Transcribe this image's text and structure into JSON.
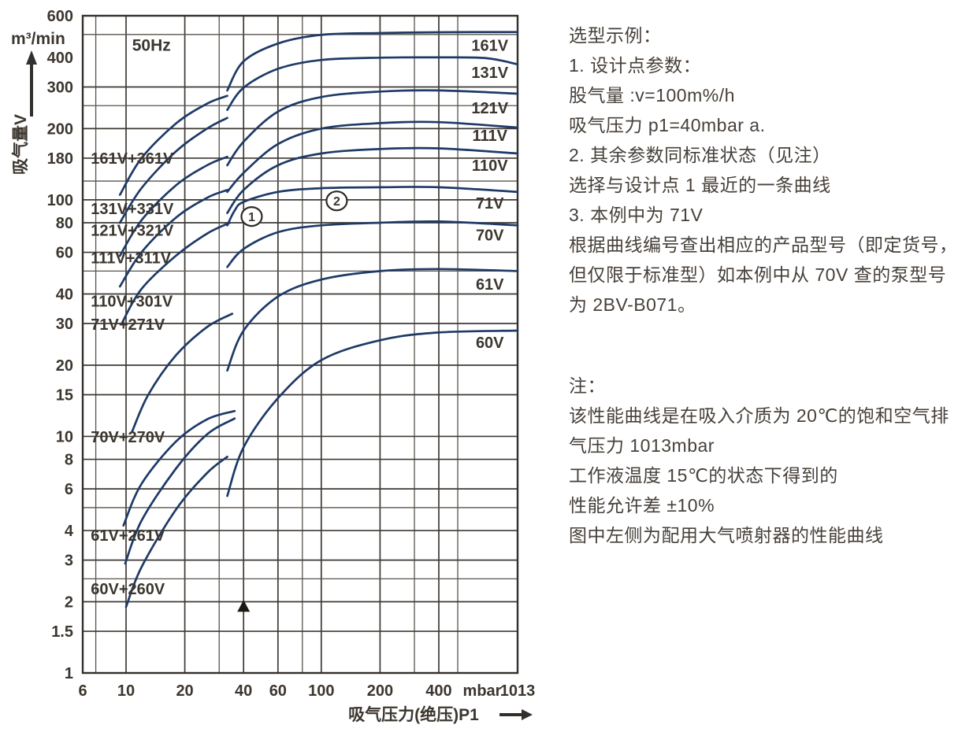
{
  "chart_data": {
    "type": "line",
    "title": "50Hz",
    "x_axis": {
      "label": "吸气压力(绝压)P1",
      "unit_label": "mbar",
      "end_tick_label": "1013",
      "scale": "log",
      "range": [
        6,
        1013
      ],
      "ticks": [
        6,
        10,
        20,
        40,
        60,
        100,
        200,
        400
      ],
      "grid_lines": [
        7,
        10,
        20,
        30,
        40,
        60,
        80,
        100,
        200,
        300,
        400,
        500
      ]
    },
    "y_axis": {
      "label": "吸气量V",
      "unit": "m³/min",
      "scale": "log",
      "range": [
        1,
        600
      ],
      "ticks": [
        {
          "label": "600",
          "pos": 600
        },
        {
          "label": "400",
          "pos": 400
        },
        {
          "label": "300",
          "pos": 300
        },
        {
          "label": "200",
          "pos": 200
        },
        {
          "label": "180",
          "pos": 150
        },
        {
          "label": "100",
          "pos": 100
        },
        {
          "label": "80",
          "pos": 80
        },
        {
          "label": "60",
          "pos": 60
        },
        {
          "label": "40",
          "pos": 40
        },
        {
          "label": "30",
          "pos": 30
        },
        {
          "label": "20",
          "pos": 20
        },
        {
          "label": "15",
          "pos": 15
        },
        {
          "label": "10",
          "pos": 10
        },
        {
          "label": "8",
          "pos": 8
        },
        {
          "label": "6",
          "pos": 6
        },
        {
          "label": "4",
          "pos": 4
        },
        {
          "label": "3",
          "pos": 3
        },
        {
          "label": "2",
          "pos": 2
        },
        {
          "label": "1.5",
          "pos": 1.5
        },
        {
          "label": "1",
          "pos": 1
        }
      ],
      "grid_lines": [
        600,
        500,
        300,
        250,
        200,
        150,
        120,
        100,
        80,
        60,
        50,
        40,
        30,
        20,
        15,
        10,
        8,
        6,
        5,
        4,
        3,
        2.5,
        2,
        1.5,
        1
      ]
    },
    "series": [
      {
        "name": "161V",
        "group": "standard",
        "label": {
          "p": 730,
          "v": 450
        },
        "points": [
          [
            33,
            290
          ],
          [
            40,
            385
          ],
          [
            60,
            458
          ],
          [
            100,
            498
          ],
          [
            200,
            507
          ],
          [
            400,
            511
          ],
          [
            1013,
            512
          ]
        ]
      },
      {
        "name": "131V",
        "group": "standard",
        "label": {
          "p": 730,
          "v": 345
        },
        "points": [
          [
            33,
            240
          ],
          [
            40,
            298
          ],
          [
            60,
            358
          ],
          [
            100,
            390
          ],
          [
            200,
            399
          ],
          [
            400,
            400
          ],
          [
            700,
            397
          ],
          [
            1013,
            374
          ]
        ]
      },
      {
        "name": "121V",
        "group": "standard",
        "label": {
          "p": 730,
          "v": 245
        },
        "points": [
          [
            33,
            140
          ],
          [
            40,
            176
          ],
          [
            60,
            236
          ],
          [
            100,
            272
          ],
          [
            200,
            287
          ],
          [
            400,
            290
          ],
          [
            1013,
            281
          ]
        ]
      },
      {
        "name": "111V",
        "group": "standard",
        "label": {
          "p": 730,
          "v": 187
        },
        "points": [
          [
            33,
            108
          ],
          [
            40,
            130
          ],
          [
            60,
            172
          ],
          [
            100,
            200
          ],
          [
            200,
            211
          ],
          [
            400,
            213
          ],
          [
            1013,
            202
          ]
        ]
      },
      {
        "name": "110V",
        "group": "standard",
        "label": {
          "p": 730,
          "v": 140
        },
        "points": [
          [
            33,
            88
          ],
          [
            40,
            110
          ],
          [
            60,
            140
          ],
          [
            100,
            157
          ],
          [
            200,
            164
          ],
          [
            400,
            165
          ],
          [
            1013,
            157
          ]
        ]
      },
      {
        "name": "71V",
        "group": "standard",
        "label": {
          "p": 730,
          "v": 97
        },
        "points": [
          [
            33,
            78
          ],
          [
            36,
            90
          ],
          [
            40,
            98
          ],
          [
            60,
            108
          ],
          [
            100,
            112
          ],
          [
            200,
            113
          ],
          [
            400,
            113
          ],
          [
            1013,
            108
          ]
        ]
      },
      {
        "name": "70V",
        "group": "standard",
        "label": {
          "p": 730,
          "v": 71
        },
        "points": [
          [
            33,
            52
          ],
          [
            40,
            62
          ],
          [
            60,
            73
          ],
          [
            100,
            78
          ],
          [
            200,
            80
          ],
          [
            400,
            81
          ],
          [
            1013,
            78
          ]
        ]
      },
      {
        "name": "61V",
        "group": "standard",
        "label": {
          "p": 730,
          "v": 44
        },
        "points": [
          [
            33,
            19
          ],
          [
            40,
            28
          ],
          [
            60,
            39
          ],
          [
            100,
            46
          ],
          [
            200,
            50
          ],
          [
            400,
            51
          ],
          [
            1013,
            50
          ]
        ]
      },
      {
        "name": "60V",
        "group": "standard",
        "label": {
          "p": 730,
          "v": 25
        },
        "points": [
          [
            33,
            5.6
          ],
          [
            40,
            9
          ],
          [
            60,
            14.5
          ],
          [
            100,
            21
          ],
          [
            200,
            25.5
          ],
          [
            400,
            27.5
          ],
          [
            1013,
            28
          ]
        ]
      },
      {
        "name": "161V+361V",
        "group": "ejector",
        "label": {
          "p": 6.6,
          "v": 150
        },
        "points": [
          [
            9.3,
            105
          ],
          [
            12,
            150
          ],
          [
            18,
            210
          ],
          [
            26,
            255
          ],
          [
            33,
            275
          ]
        ]
      },
      {
        "name": "131V+331V",
        "group": "ejector",
        "label": {
          "p": 6.6,
          "v": 92
        },
        "points": [
          [
            9.3,
            80
          ],
          [
            12,
            112
          ],
          [
            18,
            160
          ],
          [
            26,
            200
          ],
          [
            33,
            222
          ]
        ]
      },
      {
        "name": "121V+321V",
        "group": "ejector",
        "label": {
          "p": 6.6,
          "v": 74.5
        },
        "points": [
          [
            9.3,
            58
          ],
          [
            12,
            82
          ],
          [
            18,
            115
          ],
          [
            26,
            140
          ],
          [
            33,
            152
          ]
        ]
      },
      {
        "name": "111V+311V",
        "group": "ejector",
        "label": {
          "p": 6.6,
          "v": 57
        },
        "points": [
          [
            9.3,
            43
          ],
          [
            12,
            60
          ],
          [
            18,
            84
          ],
          [
            26,
            102
          ],
          [
            33,
            110
          ]
        ]
      },
      {
        "name": "110V+301V",
        "group": "ejector",
        "label": {
          "p": 6.6,
          "v": 37.3
        },
        "points": [
          [
            9.5,
            30
          ],
          [
            12,
            42
          ],
          [
            18,
            58
          ],
          [
            26,
            72
          ],
          [
            34,
            80
          ]
        ]
      },
      {
        "name": "71V+271V",
        "group": "ejector",
        "label": {
          "p": 6.6,
          "v": 29.8
        },
        "points": [
          [
            10.7,
            10.4
          ],
          [
            13,
            15
          ],
          [
            18,
            22
          ],
          [
            26,
            29
          ],
          [
            35,
            33
          ]
        ]
      },
      {
        "name": "70V+270V",
        "group": "ejector",
        "label": {
          "p": 6.6,
          "v": 9.95
        },
        "points": [
          [
            9.7,
            4.2
          ],
          [
            12,
            6.3
          ],
          [
            18,
            9.5
          ],
          [
            26,
            11.8
          ],
          [
            36,
            12.8
          ]
        ]
      },
      {
        "name": "61V+261V",
        "group": "ejector",
        "label": {
          "p": 6.6,
          "v": 3.82
        },
        "points": [
          [
            9.9,
            2.9
          ],
          [
            12,
            4.4
          ],
          [
            18,
            7.3
          ],
          [
            26,
            10.2
          ],
          [
            36,
            11.9
          ]
        ]
      },
      {
        "name": "60V+260V",
        "group": "ejector",
        "label": {
          "p": 6.6,
          "v": 2.27
        },
        "points": [
          [
            10,
            1.9
          ],
          [
            12,
            2.8
          ],
          [
            18,
            4.9
          ],
          [
            26,
            7
          ],
          [
            33,
            8.2
          ]
        ]
      }
    ],
    "annotations": {
      "freq_label": "50Hz",
      "freq_pos": {
        "p": 13.5,
        "v": 450
      },
      "markers": [
        {
          "label": "1",
          "p": 44,
          "v": 85
        },
        {
          "label": "2",
          "p": 120,
          "v": 99
        }
      ],
      "design_point_triangle": {
        "p": 40,
        "v": 1.9
      }
    }
  },
  "side_text": {
    "example_lines": [
      "选型示例：",
      "1. 设计点参数：",
      "股气量 :v=100m%/h",
      "吸气压力 p1=40mbar a.",
      "2. 其余参数同标准状态（见注）",
      "选择与设计点 1 最近的一条曲线",
      "3. 本例中为 71V",
      "根据曲线编号查出相应的产品型号（即定货号，",
      "但仅限于标准型）如本例中从 70V 查的泵型号",
      "为 2BV-B071。"
    ],
    "note_lines": [
      "注：",
      "该性能曲线是在吸入介质为 20℃的饱和空气排",
      "气压力 1013mbar",
      "工作液温度 15℃的状态下得到的",
      "性能允许差 ±10%",
      "图中左侧为配用大气喷射器的性能曲线"
    ]
  },
  "colors": {
    "curve": "#1e3a66",
    "grid": "#59534c",
    "grid_major": "#3e3a35",
    "axis": "#332f2b",
    "text": "#3c362f"
  }
}
